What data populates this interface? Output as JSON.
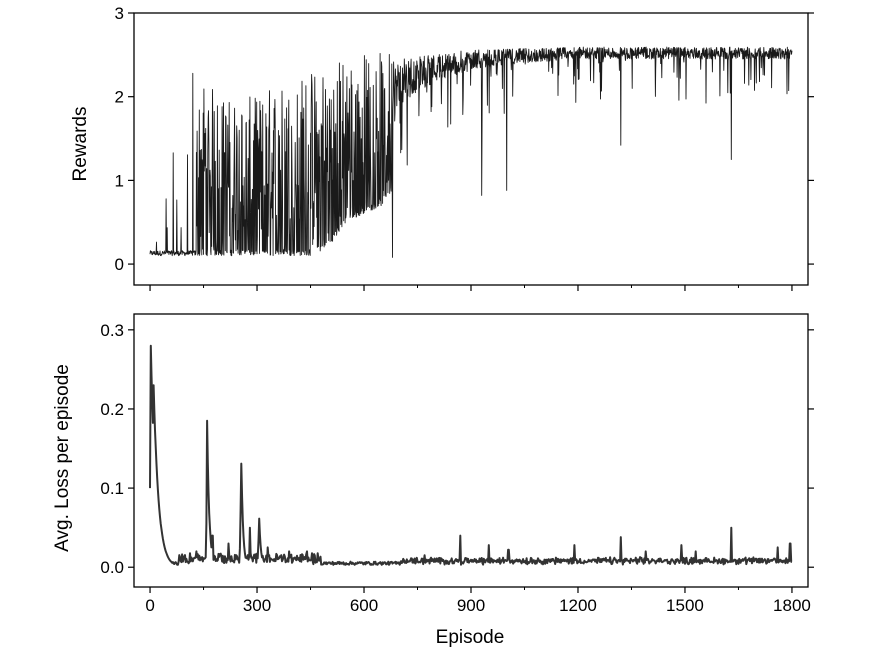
{
  "chart_data": [
    {
      "type": "line",
      "panel": "top",
      "ylabel": "Rewards",
      "xlabel": "",
      "xlim": [
        -45,
        1845
      ],
      "ylim": [
        -0.25,
        3
      ],
      "xticks": [
        0,
        300,
        600,
        900,
        1200,
        1500,
        1800
      ],
      "yticks": [
        0,
        1,
        2,
        3
      ],
      "ytick_labels": [
        "0",
        "1",
        "2",
        "3"
      ],
      "x_tick_labels_visible": false,
      "grid": false,
      "line_color": "#1a1a1a",
      "envelope": {
        "x": [
          0,
          50,
          100,
          150,
          200,
          250,
          300,
          350,
          400,
          450,
          500,
          550,
          600,
          650,
          700,
          750,
          800,
          900,
          1000,
          1200,
          1500,
          1800
        ],
        "mean": [
          0.12,
          0.13,
          0.25,
          0.45,
          0.7,
          0.85,
          1.0,
          1.1,
          1.2,
          1.35,
          1.55,
          1.7,
          1.8,
          1.9,
          2.05,
          2.2,
          2.3,
          2.4,
          2.45,
          2.5,
          2.5,
          2.5
        ],
        "low": [
          0.1,
          0.1,
          0.1,
          0.1,
          0.1,
          0.1,
          0.1,
          0.1,
          0.1,
          0.1,
          0.2,
          0.5,
          0.6,
          0.7,
          1.0,
          1.4,
          1.5,
          1.7,
          1.8,
          1.9,
          1.9,
          1.9
        ],
        "high": [
          0.25,
          0.8,
          1.3,
          2.25,
          2.0,
          2.0,
          2.0,
          2.2,
          2.2,
          2.35,
          2.45,
          2.5,
          2.55,
          2.55,
          2.6,
          2.6,
          2.6,
          2.62,
          2.62,
          2.63,
          2.63,
          2.63
        ]
      },
      "notable_points": [
        {
          "x": 45,
          "y": 0.78
        },
        {
          "x": 65,
          "y": 1.33
        },
        {
          "x": 120,
          "y": 2.28
        },
        {
          "x": 680,
          "y": 0.08
        },
        {
          "x": 930,
          "y": 0.82
        },
        {
          "x": 1000,
          "y": 0.88
        },
        {
          "x": 1320,
          "y": 1.42
        },
        {
          "x": 1630,
          "y": 1.25
        }
      ]
    },
    {
      "type": "line",
      "panel": "bottom",
      "ylabel": "Avg. Loss per episode",
      "xlabel": "Episode",
      "xlim": [
        -45,
        1845
      ],
      "ylim": [
        -0.025,
        0.32
      ],
      "xticks": [
        0,
        300,
        600,
        900,
        1200,
        1500,
        1800
      ],
      "xtick_labels": [
        "0",
        "300",
        "600",
        "900",
        "1200",
        "1500",
        "1800"
      ],
      "yticks": [
        0.0,
        0.1,
        0.2,
        0.3
      ],
      "ytick_labels": [
        "0.0",
        "0.1",
        "0.2",
        "0.3"
      ],
      "grid": false,
      "line_color": "#333333",
      "baseline": 0.003,
      "decay_peaks": [
        {
          "x": 2,
          "y": 0.28
        },
        {
          "x": 10,
          "y": 0.23
        },
        {
          "x": 160,
          "y": 0.185
        },
        {
          "x": 255,
          "y": 0.16
        },
        {
          "x": 305,
          "y": 0.075
        }
      ],
      "spikes": [
        {
          "x": 130,
          "y": 0.02
        },
        {
          "x": 175,
          "y": 0.04
        },
        {
          "x": 220,
          "y": 0.03
        },
        {
          "x": 280,
          "y": 0.05
        },
        {
          "x": 330,
          "y": 0.025
        },
        {
          "x": 390,
          "y": 0.02
        },
        {
          "x": 440,
          "y": 0.02
        },
        {
          "x": 770,
          "y": 0.015
        },
        {
          "x": 870,
          "y": 0.04
        },
        {
          "x": 950,
          "y": 0.028
        },
        {
          "x": 1005,
          "y": 0.022
        },
        {
          "x": 1190,
          "y": 0.028
        },
        {
          "x": 1320,
          "y": 0.038
        },
        {
          "x": 1390,
          "y": 0.02
        },
        {
          "x": 1490,
          "y": 0.028
        },
        {
          "x": 1530,
          "y": 0.02
        },
        {
          "x": 1630,
          "y": 0.05
        },
        {
          "x": 1760,
          "y": 0.025
        },
        {
          "x": 1795,
          "y": 0.03
        }
      ]
    }
  ]
}
